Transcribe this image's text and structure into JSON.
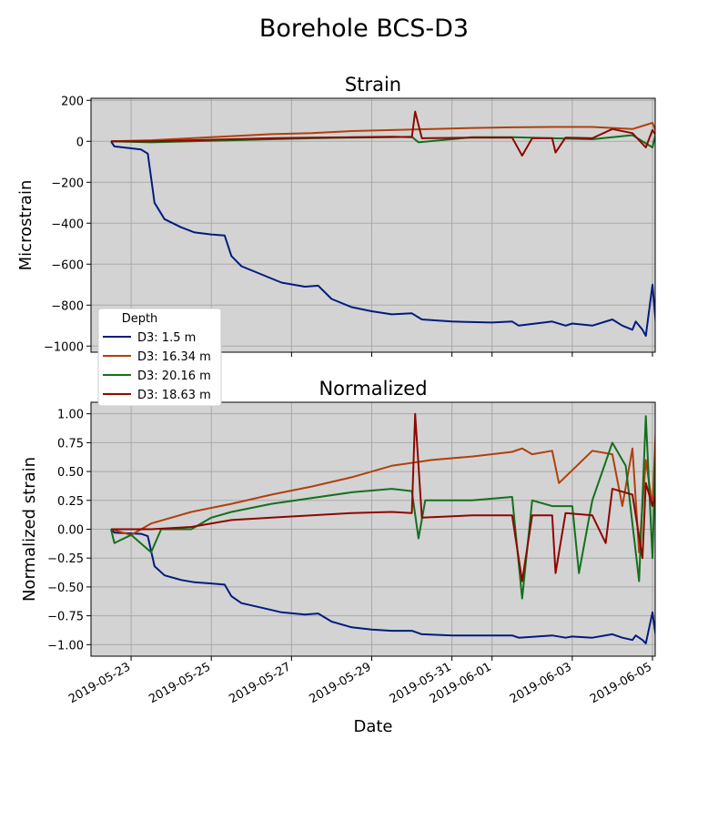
{
  "figure": {
    "suptitle": "Borehole BCS-D3",
    "xlabel": "Date",
    "legend_title": "Depth",
    "x_ticks": [
      "2019-05-23",
      "2019-05-25",
      "2019-05-27",
      "2019-05-29",
      "2019-05-31",
      "2019-06-01",
      "2019-06-03",
      "2019-06-05"
    ]
  },
  "chart_data": [
    {
      "type": "line",
      "title": "Strain",
      "ylabel": "Microstrain",
      "xlim": [
        "2019-05-22",
        "2019-06-05"
      ],
      "ylim": [
        -1030,
        210
      ],
      "yticks": [
        200,
        0,
        -200,
        -400,
        -600,
        -800,
        -1000
      ],
      "y_tick_labels": [
        "200",
        "0",
        "−200",
        "−400",
        "−600",
        "−800",
        "−1000"
      ],
      "grid": true,
      "legend_placement": "lower-left",
      "series": [
        {
          "name": "D3: 1.5 m",
          "color": "#001c7f",
          "x": [
            "2019-05-22T12:00",
            "2019-05-22T14:00",
            "2019-05-23T06:00",
            "2019-05-23T10:00",
            "2019-05-23T14:00",
            "2019-05-23T20:00",
            "2019-05-24T06:00",
            "2019-05-24T14:00",
            "2019-05-25T00:00",
            "2019-05-25T08:00",
            "2019-05-25T12:00",
            "2019-05-25T18:00",
            "2019-05-26T06:00",
            "2019-05-26T18:00",
            "2019-05-27T08:00",
            "2019-05-27T16:00",
            "2019-05-28T00:00",
            "2019-05-28T12:00",
            "2019-05-29T00:00",
            "2019-05-29T12:00",
            "2019-05-30T00:00",
            "2019-05-30T06:00",
            "2019-05-31T00:00",
            "2019-06-01T00:00",
            "2019-06-01T12:00",
            "2019-06-01T16:00",
            "2019-06-02T12:00",
            "2019-06-02T20:00",
            "2019-06-03T00:00",
            "2019-06-03T12:00",
            "2019-06-04T00:00",
            "2019-06-04T06:00",
            "2019-06-04T12:00",
            "2019-06-04T14:00",
            "2019-06-04T18:00",
            "2019-06-04T20:00",
            "2019-06-05T00:00",
            "2019-06-05T02:00"
          ],
          "y": [
            0,
            -25,
            -40,
            -60,
            -300,
            -380,
            -420,
            -445,
            -455,
            -460,
            -560,
            -610,
            -650,
            -690,
            -710,
            -705,
            -770,
            -810,
            -830,
            -845,
            -840,
            -870,
            -880,
            -885,
            -880,
            -900,
            -880,
            -900,
            -890,
            -900,
            -870,
            -900,
            -920,
            -880,
            -920,
            -950,
            -700,
            -890
          ]
        },
        {
          "name": "D3: 16.34 m",
          "color": "#b1400d",
          "x": [
            "2019-05-22T12:00",
            "2019-05-23T12:00",
            "2019-05-24T12:00",
            "2019-05-25T12:00",
            "2019-05-26T12:00",
            "2019-05-27T12:00",
            "2019-05-28T12:00",
            "2019-05-29T12:00",
            "2019-05-30T12:00",
            "2019-05-31T12:00",
            "2019-06-01T12:00",
            "2019-06-02T12:00",
            "2019-06-03T12:00",
            "2019-06-04T12:00",
            "2019-06-05T00:00",
            "2019-06-05T02:00"
          ],
          "y": [
            0,
            5,
            15,
            25,
            35,
            40,
            50,
            55,
            60,
            65,
            68,
            70,
            70,
            60,
            90,
            50
          ]
        },
        {
          "name": "D3: 20.16 m",
          "color": "#12711c",
          "x": [
            "2019-05-22T12:00",
            "2019-05-23T12:00",
            "2019-05-24T12:00",
            "2019-05-25T12:00",
            "2019-05-26T12:00",
            "2019-05-27T12:00",
            "2019-05-28T12:00",
            "2019-05-29T12:00",
            "2019-05-30T00:00",
            "2019-05-30T04:00",
            "2019-05-31T12:00",
            "2019-06-01T12:00",
            "2019-06-02T12:00",
            "2019-06-03T12:00",
            "2019-06-04T12:00",
            "2019-06-05T00:00",
            "2019-06-05T02:00"
          ],
          "y": [
            0,
            -5,
            0,
            5,
            10,
            15,
            18,
            20,
            22,
            -5,
            20,
            20,
            15,
            10,
            30,
            -30,
            40
          ]
        },
        {
          "name": "D3: 18.63 m",
          "color": "#8c0800",
          "x": [
            "2019-05-22T12:00",
            "2019-05-23T12:00",
            "2019-05-24T12:00",
            "2019-05-25T12:00",
            "2019-05-26T12:00",
            "2019-05-27T12:00",
            "2019-05-28T12:00",
            "2019-05-29T12:00",
            "2019-05-30T00:00",
            "2019-05-30T02:00",
            "2019-05-30T06:00",
            "2019-05-31T12:00",
            "2019-06-01T12:00",
            "2019-06-01T18:00",
            "2019-06-02T00:00",
            "2019-06-02T12:00",
            "2019-06-02T14:00",
            "2019-06-02T20:00",
            "2019-06-03T12:00",
            "2019-06-04T00:00",
            "2019-06-04T12:00",
            "2019-06-04T20:00",
            "2019-06-05T00:00",
            "2019-06-05T02:00"
          ],
          "y": [
            0,
            0,
            5,
            10,
            15,
            18,
            20,
            22,
            20,
            145,
            15,
            18,
            18,
            -70,
            15,
            15,
            -55,
            18,
            15,
            60,
            40,
            -30,
            55,
            30
          ]
        }
      ]
    },
    {
      "type": "line",
      "title": "Normalized",
      "ylabel": "Normalized strain",
      "xlim": [
        "2019-05-22",
        "2019-06-05"
      ],
      "ylim": [
        -1.1,
        1.1
      ],
      "yticks": [
        1.0,
        0.75,
        0.5,
        0.25,
        0.0,
        -0.25,
        -0.5,
        -0.75,
        -1.0
      ],
      "y_tick_labels": [
        "1.00",
        "0.75",
        "0.50",
        "0.25",
        "0.00",
        "−0.25",
        "−0.50",
        "−0.75",
        "−1.00"
      ],
      "grid": true,
      "series": [
        {
          "name": "D3: 1.5 m",
          "color": "#001c7f",
          "x": [
            "2019-05-22T12:00",
            "2019-05-22T14:00",
            "2019-05-23T06:00",
            "2019-05-23T10:00",
            "2019-05-23T14:00",
            "2019-05-23T20:00",
            "2019-05-24T06:00",
            "2019-05-24T14:00",
            "2019-05-25T00:00",
            "2019-05-25T08:00",
            "2019-05-25T12:00",
            "2019-05-25T18:00",
            "2019-05-26T06:00",
            "2019-05-26T18:00",
            "2019-05-27T08:00",
            "2019-05-27T16:00",
            "2019-05-28T00:00",
            "2019-05-28T12:00",
            "2019-05-29T00:00",
            "2019-05-29T12:00",
            "2019-05-30T00:00",
            "2019-05-30T06:00",
            "2019-05-31T00:00",
            "2019-06-01T00:00",
            "2019-06-01T12:00",
            "2019-06-01T16:00",
            "2019-06-02T12:00",
            "2019-06-02T20:00",
            "2019-06-03T00:00",
            "2019-06-03T12:00",
            "2019-06-04T00:00",
            "2019-06-04T06:00",
            "2019-06-04T12:00",
            "2019-06-04T14:00",
            "2019-06-04T18:00",
            "2019-06-04T20:00",
            "2019-06-05T00:00",
            "2019-06-05T02:00"
          ],
          "y": [
            0,
            -0.03,
            -0.04,
            -0.06,
            -0.32,
            -0.4,
            -0.44,
            -0.46,
            -0.47,
            -0.48,
            -0.58,
            -0.64,
            -0.68,
            -0.72,
            -0.74,
            -0.73,
            -0.8,
            -0.85,
            -0.87,
            -0.88,
            -0.88,
            -0.91,
            -0.92,
            -0.92,
            -0.92,
            -0.94,
            -0.92,
            -0.94,
            -0.93,
            -0.94,
            -0.91,
            -0.94,
            -0.96,
            -0.92,
            -0.96,
            -0.99,
            -0.72,
            -0.93
          ]
        },
        {
          "name": "D3: 16.34 m",
          "color": "#b1400d",
          "x": [
            "2019-05-22T12:00",
            "2019-05-23T00:00",
            "2019-05-23T12:00",
            "2019-05-24T12:00",
            "2019-05-25T12:00",
            "2019-05-26T12:00",
            "2019-05-27T12:00",
            "2019-05-28T12:00",
            "2019-05-29T12:00",
            "2019-05-30T12:00",
            "2019-05-31T12:00",
            "2019-06-01T12:00",
            "2019-06-01T18:00",
            "2019-06-02T00:00",
            "2019-06-02T12:00",
            "2019-06-02T16:00",
            "2019-06-03T12:00",
            "2019-06-04T00:00",
            "2019-06-04T06:00",
            "2019-06-04T12:00",
            "2019-06-04T16:00",
            "2019-06-04T20:00",
            "2019-06-05T00:00",
            "2019-06-05T02:00"
          ],
          "y": [
            0,
            -0.05,
            0.05,
            0.15,
            0.22,
            0.3,
            0.37,
            0.45,
            0.55,
            0.6,
            0.63,
            0.67,
            0.7,
            0.65,
            0.68,
            0.4,
            0.68,
            0.65,
            0.2,
            0.7,
            -0.2,
            0.6,
            0.2,
            0.87
          ]
        },
        {
          "name": "D3: 20.16 m",
          "color": "#12711c",
          "x": [
            "2019-05-22T12:00",
            "2019-05-22T14:00",
            "2019-05-23T00:00",
            "2019-05-23T12:00",
            "2019-05-23T18:00",
            "2019-05-24T12:00",
            "2019-05-25T00:00",
            "2019-05-25T12:00",
            "2019-05-26T12:00",
            "2019-05-27T12:00",
            "2019-05-28T12:00",
            "2019-05-29T12:00",
            "2019-05-30T00:00",
            "2019-05-30T04:00",
            "2019-05-30T08:00",
            "2019-05-31T12:00",
            "2019-06-01T12:00",
            "2019-06-01T18:00",
            "2019-06-02T00:00",
            "2019-06-02T12:00",
            "2019-06-03T00:00",
            "2019-06-03T04:00",
            "2019-06-03T12:00",
            "2019-06-04T00:00",
            "2019-06-04T08:00",
            "2019-06-04T16:00",
            "2019-06-04T20:00",
            "2019-06-05T00:00",
            "2019-06-05T02:00"
          ],
          "y": [
            0,
            -0.12,
            -0.05,
            -0.2,
            0.0,
            0.0,
            0.1,
            0.15,
            0.22,
            0.27,
            0.32,
            0.35,
            0.33,
            -0.08,
            0.25,
            0.25,
            0.28,
            -0.6,
            0.25,
            0.2,
            0.2,
            -0.38,
            0.25,
            0.75,
            0.55,
            -0.45,
            0.98,
            -0.25,
            0.7
          ]
        },
        {
          "name": "D3: 18.63 m",
          "color": "#8c0800",
          "x": [
            "2019-05-22T12:00",
            "2019-05-23T12:00",
            "2019-05-24T12:00",
            "2019-05-25T12:00",
            "2019-05-26T12:00",
            "2019-05-27T12:00",
            "2019-05-28T12:00",
            "2019-05-29T12:00",
            "2019-05-30T00:00",
            "2019-05-30T02:00",
            "2019-05-30T06:00",
            "2019-05-31T12:00",
            "2019-06-01T12:00",
            "2019-06-01T18:00",
            "2019-06-02T00:00",
            "2019-06-02T12:00",
            "2019-06-02T14:00",
            "2019-06-02T20:00",
            "2019-06-03T12:00",
            "2019-06-03T20:00",
            "2019-06-04T00:00",
            "2019-06-04T12:00",
            "2019-06-04T18:00",
            "2019-06-04T20:00",
            "2019-06-05T00:00",
            "2019-06-05T02:00"
          ],
          "y": [
            0,
            0.0,
            0.02,
            0.08,
            0.1,
            0.12,
            0.14,
            0.15,
            0.14,
            1.0,
            0.1,
            0.12,
            0.12,
            -0.45,
            0.12,
            0.12,
            -0.38,
            0.14,
            0.12,
            -0.12,
            0.35,
            0.3,
            -0.25,
            0.4,
            0.2,
            0.3
          ]
        }
      ]
    }
  ]
}
